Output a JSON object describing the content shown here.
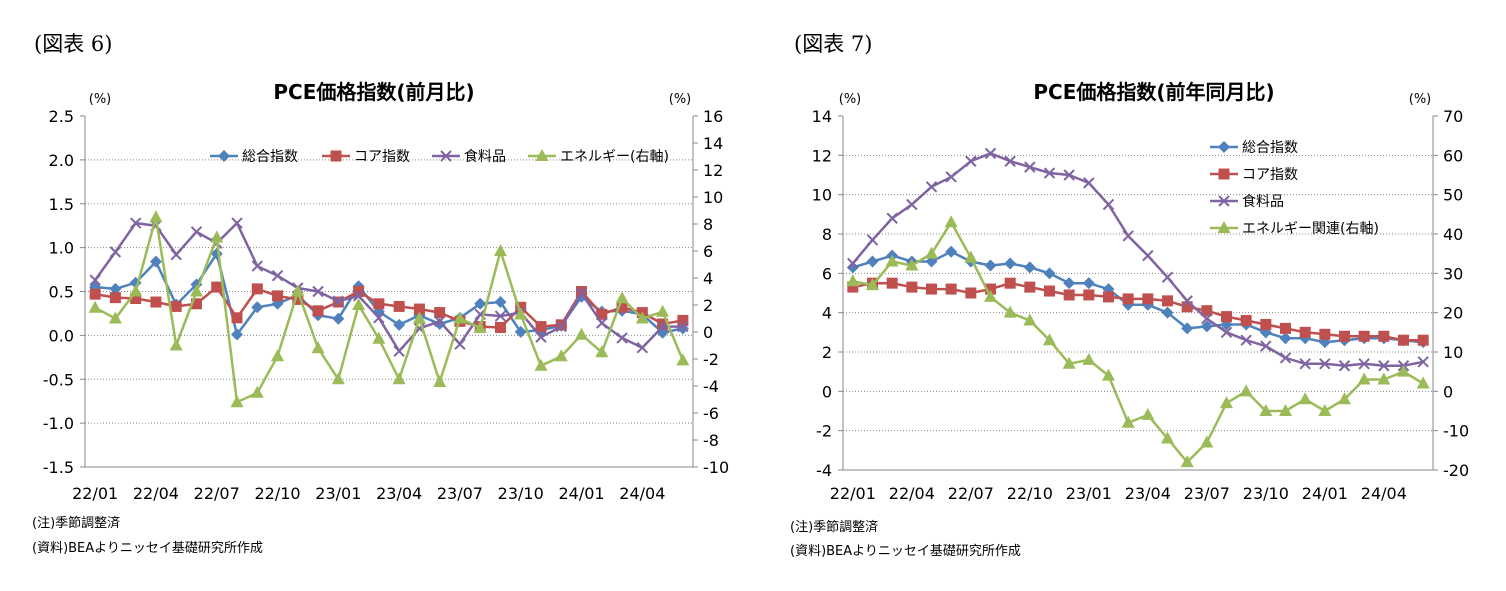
{
  "figures": [
    {
      "label": "(図表 6)",
      "note1": "(注)季節調整済",
      "note2": "(資料)BEAよりニッセイ基礎研究所作成"
    },
    {
      "label": "(図表 7)",
      "note1": "(注)季節調整済",
      "note2": "(資料)BEAよりニッセイ基礎研究所作成"
    }
  ],
  "chart_data": [
    {
      "type": "line",
      "title": "PCE価格指数(前月比)",
      "y_unit": "(%)",
      "y2_unit": "(%)",
      "ylim": [
        -1.5,
        2.5
      ],
      "yticks": [
        "2.5",
        "2.0",
        "1.5",
        "1.0",
        "0.5",
        "0.0",
        "-0.5",
        "-1.0",
        "-1.5"
      ],
      "y2lim": [
        -10,
        16
      ],
      "y2ticks": [
        "16",
        "14",
        "12",
        "10",
        "8",
        "6",
        "4",
        "2",
        "0",
        "-2",
        "-4",
        "-6",
        "-8",
        "-10"
      ],
      "xticks": [
        "22/01",
        "22/04",
        "22/07",
        "22/10",
        "23/01",
        "23/04",
        "23/07",
        "23/10",
        "24/01",
        "24/04"
      ],
      "n_points": 30,
      "grid": "horizontal-dotted",
      "legend_position": "top-right",
      "series": [
        {
          "name": "総合指数",
          "color": "#4f81bd",
          "marker": "diamond",
          "axis": "left",
          "values": [
            0.55,
            0.53,
            0.6,
            0.84,
            0.35,
            0.58,
            0.93,
            0.01,
            0.32,
            0.36,
            0.46,
            0.23,
            0.19,
            0.56,
            0.27,
            0.12,
            0.23,
            0.13,
            0.2,
            0.36,
            0.38,
            0.04,
            0.06,
            0.11,
            0.44,
            0.27,
            0.28,
            0.24,
            0.03,
            0.08
          ]
        },
        {
          "name": "コア指数",
          "color": "#c0504d",
          "marker": "square",
          "axis": "left",
          "values": [
            0.47,
            0.43,
            0.42,
            0.38,
            0.33,
            0.36,
            0.55,
            0.2,
            0.53,
            0.45,
            0.41,
            0.28,
            0.38,
            0.5,
            0.36,
            0.33,
            0.3,
            0.26,
            0.16,
            0.1,
            0.09,
            0.32,
            0.1,
            0.12,
            0.5,
            0.24,
            0.32,
            0.26,
            0.13,
            0.17
          ]
        },
        {
          "name": "食料品",
          "color": "#8064a2",
          "marker": "x",
          "axis": "left",
          "values": [
            0.63,
            0.95,
            1.28,
            1.25,
            0.92,
            1.18,
            1.05,
            1.28,
            0.79,
            0.68,
            0.54,
            0.5,
            0.39,
            0.45,
            0.2,
            -0.18,
            0.08,
            0.16,
            -0.1,
            0.24,
            0.22,
            0.26,
            -0.02,
            0.1,
            0.48,
            0.14,
            -0.03,
            -0.14,
            0.1,
            0.1
          ]
        },
        {
          "name": "エネルギー(右軸)",
          "color": "#9bbb59",
          "marker": "triangle",
          "axis": "right",
          "values": [
            1.8,
            1.0,
            3.0,
            8.5,
            -1.0,
            3.0,
            7.0,
            -5.2,
            -4.5,
            -1.8,
            3.0,
            -1.2,
            -3.5,
            2.0,
            -0.5,
            -3.5,
            1.0,
            -3.7,
            1.0,
            0.3,
            6.0,
            1.3,
            -2.5,
            -1.8,
            -0.2,
            -1.5,
            2.5,
            1.0,
            1.5,
            -2.1
          ]
        }
      ]
    },
    {
      "type": "line",
      "title": "PCE価格指数(前年同月比)",
      "y_unit": "(%)",
      "y2_unit": "(%)",
      "ylim": [
        -4,
        14
      ],
      "yticks": [
        "14",
        "12",
        "10",
        "8",
        "6",
        "4",
        "2",
        "0",
        "-2",
        "-4"
      ],
      "y2lim": [
        -20,
        70
      ],
      "y2ticks": [
        "70",
        "60",
        "50",
        "40",
        "30",
        "20",
        "10",
        "0",
        "-10",
        "-20"
      ],
      "xticks": [
        "22/01",
        "22/04",
        "22/07",
        "22/10",
        "23/01",
        "23/04",
        "23/07",
        "23/10",
        "24/01",
        "24/04"
      ],
      "n_points": 30,
      "grid": "horizontal-dotted",
      "legend_position": "top-right",
      "series": [
        {
          "name": "総合指数",
          "color": "#4f81bd",
          "marker": "diamond",
          "axis": "left",
          "values": [
            6.3,
            6.6,
            6.9,
            6.6,
            6.6,
            7.1,
            6.6,
            6.4,
            6.5,
            6.3,
            6.0,
            5.5,
            5.5,
            5.2,
            4.4,
            4.4,
            4.0,
            3.2,
            3.3,
            3.4,
            3.4,
            3.0,
            2.7,
            2.7,
            2.5,
            2.6,
            2.7,
            2.7,
            2.6,
            2.5
          ]
        },
        {
          "name": "コア指数",
          "color": "#c0504d",
          "marker": "square",
          "axis": "left",
          "values": [
            5.3,
            5.5,
            5.5,
            5.3,
            5.2,
            5.2,
            5.0,
            5.2,
            5.5,
            5.3,
            5.1,
            4.9,
            4.9,
            4.8,
            4.7,
            4.7,
            4.6,
            4.3,
            4.1,
            3.8,
            3.6,
            3.4,
            3.2,
            3.0,
            2.9,
            2.8,
            2.8,
            2.8,
            2.6,
            2.6
          ]
        },
        {
          "name": "食料品",
          "color": "#8064a2",
          "marker": "x",
          "axis": "left",
          "values": [
            6.5,
            7.7,
            8.8,
            9.5,
            10.4,
            10.9,
            11.7,
            12.1,
            11.7,
            11.4,
            11.1,
            11.0,
            10.6,
            9.5,
            7.9,
            6.9,
            5.8,
            4.6,
            3.7,
            3.0,
            2.6,
            2.3,
            1.7,
            1.4,
            1.4,
            1.3,
            1.4,
            1.3,
            1.3,
            1.5
          ]
        },
        {
          "name": "エネルギー関連(右軸)",
          "color": "#9bbb59",
          "marker": "triangle",
          "axis": "right",
          "values": [
            28,
            27,
            33,
            32,
            35,
            43,
            34,
            24,
            20,
            18,
            13,
            7,
            8,
            4,
            -8,
            -6,
            -12,
            -18,
            -13,
            -3,
            0,
            -5,
            -5,
            -2,
            -5,
            -2,
            3,
            3,
            5,
            2
          ]
        }
      ]
    }
  ]
}
